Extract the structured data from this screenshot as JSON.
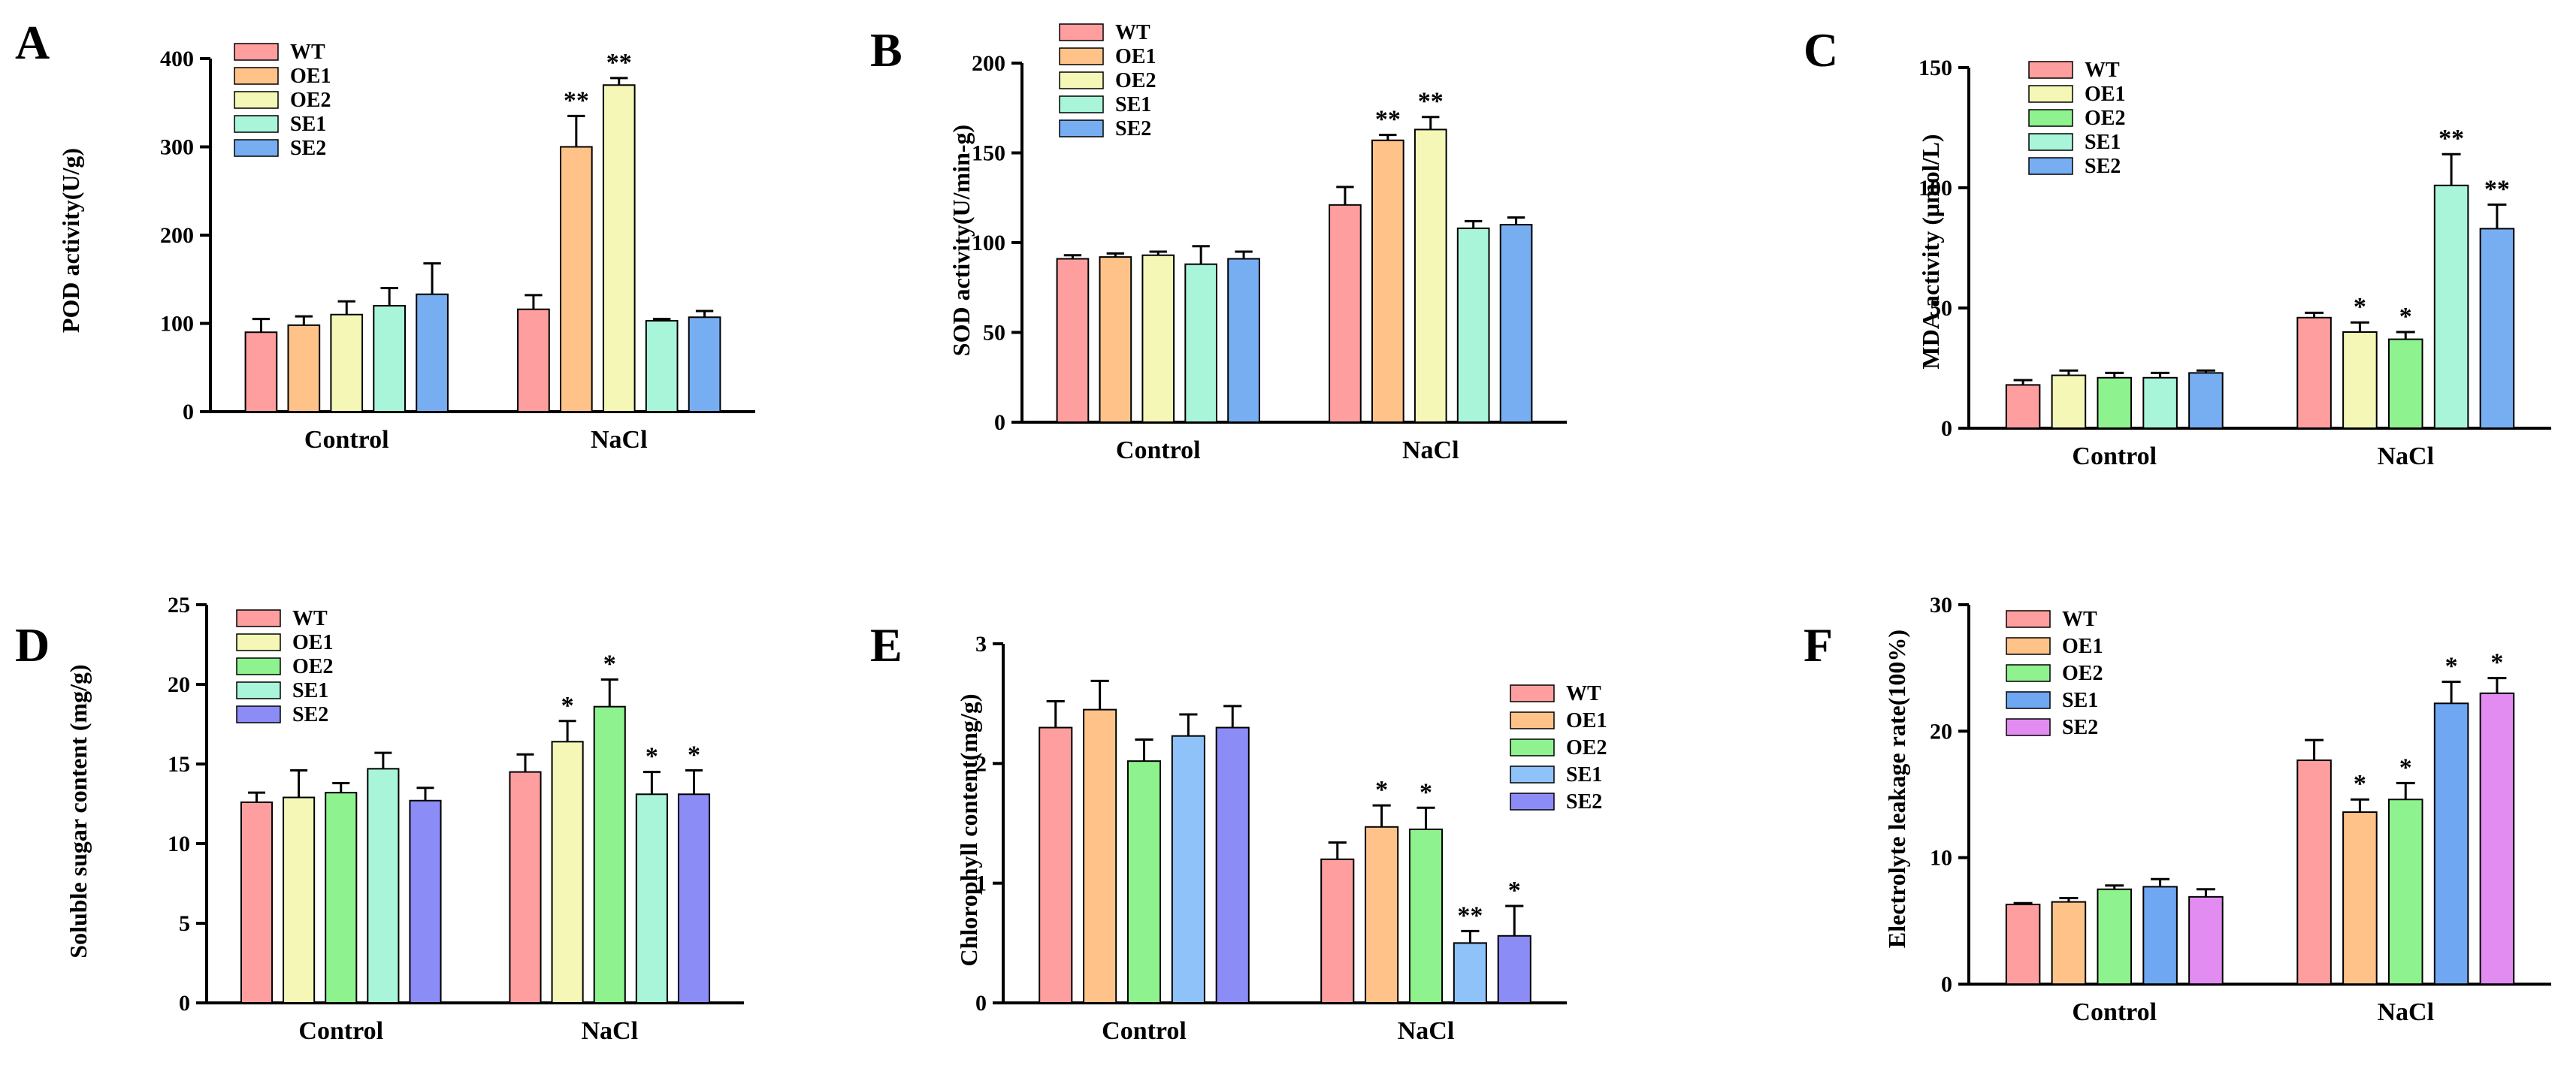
{
  "chart_data": [
    {
      "type": "bar",
      "panel": "A",
      "ylabel": "POD activity(U/g)",
      "ylim": [
        0,
        400
      ],
      "yticks": [
        0,
        100,
        200,
        300,
        400
      ],
      "categories": [
        "Control",
        "NaCl"
      ],
      "series": [
        {
          "name": "WT",
          "color": "#FF9E9E",
          "values": [
            90,
            116
          ],
          "errors": [
            15,
            16
          ],
          "sig": [
            "",
            ""
          ]
        },
        {
          "name": "OE1",
          "color": "#FFC389",
          "values": [
            98,
            300
          ],
          "errors": [
            10,
            35
          ],
          "sig": [
            "",
            "**"
          ]
        },
        {
          "name": "OE2",
          "color": "#F4F7B6",
          "values": [
            110,
            370
          ],
          "errors": [
            15,
            8
          ],
          "sig": [
            "",
            "**"
          ]
        },
        {
          "name": "SE1",
          "color": "#A9F5D9",
          "values": [
            120,
            103
          ],
          "errors": [
            20,
            2
          ],
          "sig": [
            "",
            ""
          ]
        },
        {
          "name": "SE2",
          "color": "#77AEF2",
          "values": [
            133,
            107
          ],
          "errors": [
            35,
            7
          ],
          "sig": [
            "",
            ""
          ]
        }
      ]
    },
    {
      "type": "bar",
      "panel": "B",
      "ylabel": "SOD activity(U/min-g)",
      "ylim": [
        0,
        200
      ],
      "yticks": [
        0,
        50,
        100,
        150,
        200
      ],
      "categories": [
        "Control",
        "NaCl"
      ],
      "series": [
        {
          "name": "WT",
          "color": "#FF9E9E",
          "values": [
            91,
            121
          ],
          "errors": [
            2,
            10
          ],
          "sig": [
            "",
            ""
          ]
        },
        {
          "name": "OE1",
          "color": "#FFC389",
          "values": [
            92,
            157
          ],
          "errors": [
            2,
            3
          ],
          "sig": [
            "",
            "**"
          ]
        },
        {
          "name": "OE2",
          "color": "#F4F7B6",
          "values": [
            93,
            163
          ],
          "errors": [
            2,
            7
          ],
          "sig": [
            "",
            "**"
          ]
        },
        {
          "name": "SE1",
          "color": "#A9F5D9",
          "values": [
            88,
            108
          ],
          "errors": [
            10,
            4
          ],
          "sig": [
            "",
            ""
          ]
        },
        {
          "name": "SE2",
          "color": "#77AEF2",
          "values": [
            91,
            110
          ],
          "errors": [
            4,
            4
          ],
          "sig": [
            "",
            ""
          ]
        }
      ]
    },
    {
      "type": "bar",
      "panel": "C",
      "ylabel": "MDA activity (μmol/L)",
      "ylim": [
        0,
        150
      ],
      "yticks": [
        0,
        50,
        100,
        150
      ],
      "categories": [
        "Control",
        "NaCl"
      ],
      "series": [
        {
          "name": "WT",
          "color": "#FF9E9E",
          "values": [
            18,
            46
          ],
          "errors": [
            2,
            2
          ],
          "sig": [
            "",
            ""
          ]
        },
        {
          "name": "OE1",
          "color": "#F4F7B6",
          "values": [
            22,
            40
          ],
          "errors": [
            2,
            4
          ],
          "sig": [
            "",
            "*"
          ]
        },
        {
          "name": "OE2",
          "color": "#8EF28E",
          "values": [
            21,
            37
          ],
          "errors": [
            2,
            3
          ],
          "sig": [
            "",
            "*"
          ]
        },
        {
          "name": "SE1",
          "color": "#A9F5D9",
          "values": [
            21,
            101
          ],
          "errors": [
            2,
            13
          ],
          "sig": [
            "",
            "**"
          ]
        },
        {
          "name": "SE2",
          "color": "#77AEF2",
          "values": [
            23,
            83
          ],
          "errors": [
            1,
            10
          ],
          "sig": [
            "",
            "**"
          ]
        }
      ]
    },
    {
      "type": "bar",
      "panel": "D",
      "ylabel": "Soluble sugar content (mg/g)",
      "ylim": [
        0,
        25
      ],
      "yticks": [
        0,
        5,
        10,
        15,
        20,
        25
      ],
      "categories": [
        "Control",
        "NaCl"
      ],
      "series": [
        {
          "name": "WT",
          "color": "#FF9E9E",
          "values": [
            12.6,
            14.5
          ],
          "errors": [
            0.6,
            1.1
          ],
          "sig": [
            "",
            ""
          ]
        },
        {
          "name": "OE1",
          "color": "#F4F7B6",
          "values": [
            12.9,
            16.4
          ],
          "errors": [
            1.7,
            1.3
          ],
          "sig": [
            "",
            "*"
          ]
        },
        {
          "name": "OE2",
          "color": "#8EF28E",
          "values": [
            13.2,
            18.6
          ],
          "errors": [
            0.6,
            1.7
          ],
          "sig": [
            "",
            "*"
          ]
        },
        {
          "name": "SE1",
          "color": "#A9F5D9",
          "values": [
            14.7,
            13.1
          ],
          "errors": [
            1.0,
            1.4
          ],
          "sig": [
            "",
            "*"
          ]
        },
        {
          "name": "SE2",
          "color": "#8C8CF7",
          "values": [
            12.7,
            13.1
          ],
          "errors": [
            0.8,
            1.5
          ],
          "sig": [
            "",
            "*"
          ]
        }
      ]
    },
    {
      "type": "bar",
      "panel": "E",
      "ylabel": "Chlorophyll content(mg/g)",
      "ylim": [
        0,
        3
      ],
      "yticks": [
        0,
        1,
        2,
        3
      ],
      "categories": [
        "Control",
        "NaCl"
      ],
      "series": [
        {
          "name": "WT",
          "color": "#FF9E9E",
          "values": [
            2.3,
            1.2
          ],
          "errors": [
            0.22,
            0.14
          ],
          "sig": [
            "",
            ""
          ]
        },
        {
          "name": "OE1",
          "color": "#FFC389",
          "values": [
            2.45,
            1.47
          ],
          "errors": [
            0.24,
            0.18
          ],
          "sig": [
            "",
            "*"
          ]
        },
        {
          "name": "OE2",
          "color": "#8EF28E",
          "values": [
            2.02,
            1.45
          ],
          "errors": [
            0.18,
            0.18
          ],
          "sig": [
            "",
            "*"
          ]
        },
        {
          "name": "SE1",
          "color": "#8EC2F8",
          "values": [
            2.23,
            0.5
          ],
          "errors": [
            0.18,
            0.1
          ],
          "sig": [
            "",
            "**"
          ]
        },
        {
          "name": "SE2",
          "color": "#8C8CF7",
          "values": [
            2.3,
            0.56
          ],
          "errors": [
            0.18,
            0.25
          ],
          "sig": [
            "",
            "*"
          ]
        }
      ]
    },
    {
      "type": "bar",
      "panel": "F",
      "ylabel": "Electrolyte leakage rate(100%)",
      "ylim": [
        0,
        30
      ],
      "yticks": [
        0,
        10,
        20,
        30
      ],
      "categories": [
        "Control",
        "NaCl"
      ],
      "series": [
        {
          "name": "WT",
          "color": "#FF9E9E",
          "values": [
            6.3,
            17.7
          ],
          "errors": [
            0.1,
            1.6
          ],
          "sig": [
            "",
            ""
          ]
        },
        {
          "name": "OE1",
          "color": "#FFC389",
          "values": [
            6.5,
            13.6
          ],
          "errors": [
            0.3,
            1.0
          ],
          "sig": [
            "",
            "*"
          ]
        },
        {
          "name": "OE2",
          "color": "#8EF28E",
          "values": [
            7.5,
            14.6
          ],
          "errors": [
            0.3,
            1.3
          ],
          "sig": [
            "",
            "*"
          ]
        },
        {
          "name": "SE1",
          "color": "#6FA7F2",
          "values": [
            7.7,
            22.2
          ],
          "errors": [
            0.6,
            1.7
          ],
          "sig": [
            "",
            "*"
          ]
        },
        {
          "name": "SE2",
          "color": "#E28CF2",
          "values": [
            6.9,
            23.0
          ],
          "errors": [
            0.6,
            1.2
          ],
          "sig": [
            "",
            "*"
          ]
        }
      ]
    }
  ]
}
